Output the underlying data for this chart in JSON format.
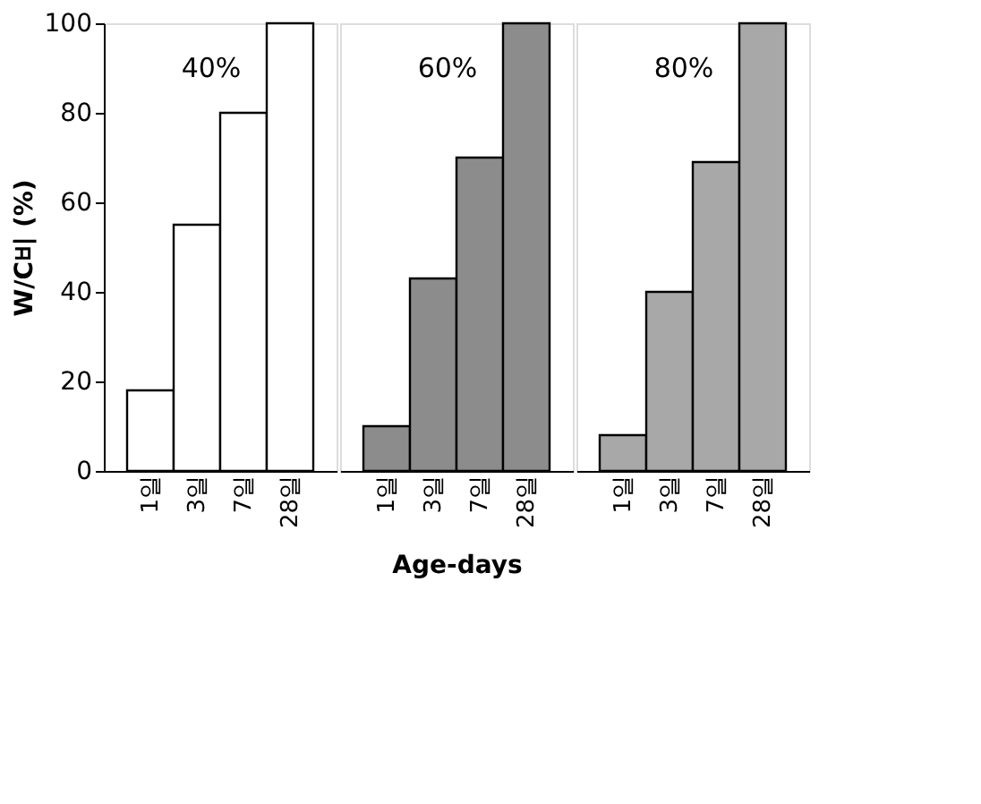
{
  "chart_data": [
    {
      "type": "bar",
      "categories": [
        "1일",
        "3일",
        "7일",
        "28일"
      ],
      "values": [
        18,
        55,
        80,
        100
      ],
      "color": "#ffffff",
      "annotations": [
        "40%"
      ],
      "ylabel": "W/C비 (%)",
      "ylim": [
        0,
        100
      ],
      "yticks": [
        0,
        20,
        40,
        60,
        80,
        100
      ]
    },
    {
      "type": "bar",
      "categories": [
        "1일",
        "3일",
        "7일",
        "28일"
      ],
      "values": [
        10,
        43,
        70,
        100
      ],
      "color": "#8c8c8c",
      "annotations": [
        "60%"
      ],
      "xlabel": "Age-days",
      "ylim": [
        0,
        100
      ],
      "tick_labels": "x"
    },
    {
      "type": "bar",
      "categories": [
        "1일",
        "3일",
        "7일",
        "28일"
      ],
      "values": [
        8,
        40,
        69,
        100
      ],
      "color": "#a8a8a8",
      "annotations": [
        "80%"
      ],
      "ylim": [
        0,
        100
      ],
      "tick_labels": "x"
    }
  ]
}
